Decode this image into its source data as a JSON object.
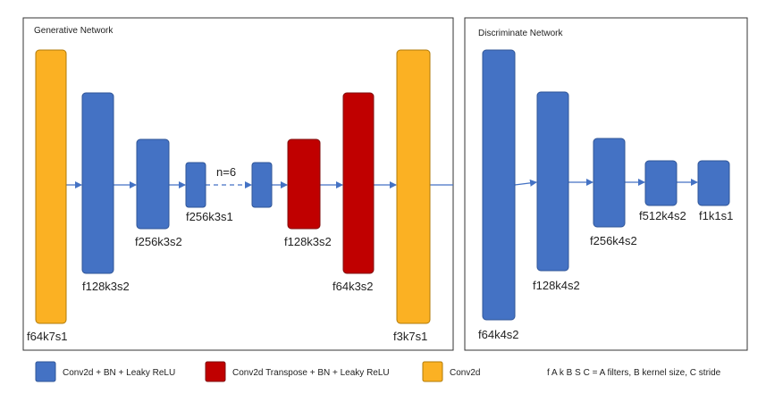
{
  "colors": {
    "conv": "#4472C4",
    "conv_edge": "#2F5597",
    "transpose": "#C00000",
    "transpose_edge": "#7F1010",
    "plain": "#FBB123",
    "plain_edge": "#B07B0A",
    "arrow": "#4472C4",
    "frame": "#333333"
  },
  "generative": {
    "title": "Generative Network",
    "layers": [
      {
        "type": "plain",
        "label": "f64k7s1"
      },
      {
        "type": "conv",
        "label": "f128k3s2"
      },
      {
        "type": "conv",
        "label": "f256k3s2"
      },
      {
        "type": "conv",
        "label": "f256k3s1"
      },
      {
        "type": "conv",
        "label": ""
      },
      {
        "type": "transpose",
        "label": "f128k3s2"
      },
      {
        "type": "transpose",
        "label": "f64k3s2"
      },
      {
        "type": "plain",
        "label": "f3k7s1"
      }
    ],
    "repeat_label": "n=6"
  },
  "discriminative": {
    "title": "Discriminate Network",
    "layers": [
      {
        "type": "conv",
        "label": "f64k4s2"
      },
      {
        "type": "conv",
        "label": "f128k4s2"
      },
      {
        "type": "conv",
        "label": "f256k4s2"
      },
      {
        "type": "conv",
        "label": "f512k4s2"
      },
      {
        "type": "conv",
        "label": "f1k1s1"
      }
    ]
  },
  "legend": {
    "conv": "Conv2d + BN + Leaky ReLU",
    "transpose": "Conv2d Transpose + BN + Leaky ReLU",
    "plain": "Conv2d",
    "notation": "f A k B S C = A filters, B kernel size, C stride"
  }
}
